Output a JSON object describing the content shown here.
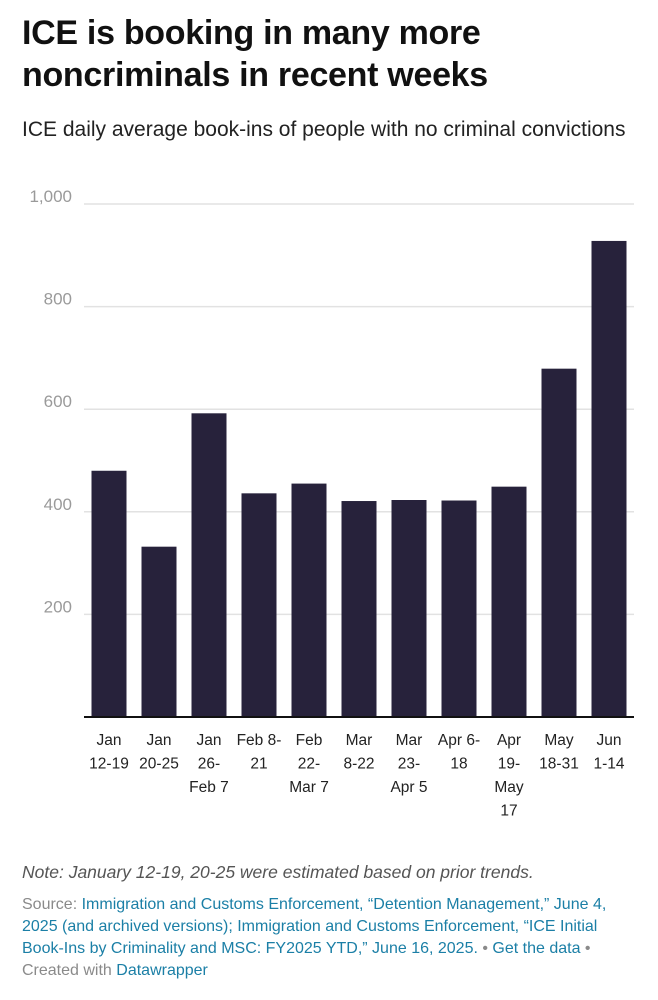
{
  "header": {
    "title": "ICE is booking in many more noncriminals in recent weeks",
    "subtitle": "ICE daily average book-ins of people with no criminal convictions"
  },
  "colors": {
    "bar": "#27223b",
    "grid": "#e2e2e2",
    "axis": "#111111",
    "link": "#1b7fa6"
  },
  "chart_data": {
    "type": "bar",
    "categories": [
      [
        "Jan",
        "12-19"
      ],
      [
        "Jan",
        "20-25"
      ],
      [
        "Jan",
        "26-",
        "Feb 7"
      ],
      [
        "Feb 8-",
        "21"
      ],
      [
        "Feb",
        "22-",
        "Mar 7"
      ],
      [
        "Mar",
        "8-22"
      ],
      [
        "Mar",
        "23-",
        "Apr 5"
      ],
      [
        "Apr 6-",
        "18"
      ],
      [
        "Apr",
        "19-",
        "May",
        "17"
      ],
      [
        "May",
        "18-31"
      ],
      [
        "Jun",
        "1-14"
      ]
    ],
    "values": [
      480,
      332,
      592,
      436,
      455,
      421,
      423,
      422,
      449,
      679,
      928
    ],
    "ylim": [
      0,
      1000
    ],
    "yticks": [
      200,
      400,
      600,
      800,
      1000
    ],
    "ytick_labels": [
      "200",
      "400",
      "600",
      "800",
      "1,000"
    ],
    "grid": true
  },
  "footer": {
    "note": "Note: January 12-19, 20-25 were estimated based on prior trends.",
    "source_prefix": "Source: ",
    "source_link": "Immigration and Customs Enforcement, “Detention Management,” June 4, 2025 (and archived versions); Immigration and Customs Enforcement, “ICE Initial Book-Ins by Criminality and MSC: FY2025 YTD,” June 16, 2025.",
    "separator": " • ",
    "get_data": "Get the data",
    "created_with": "Created with ",
    "datawrapper": "Datawrapper"
  }
}
